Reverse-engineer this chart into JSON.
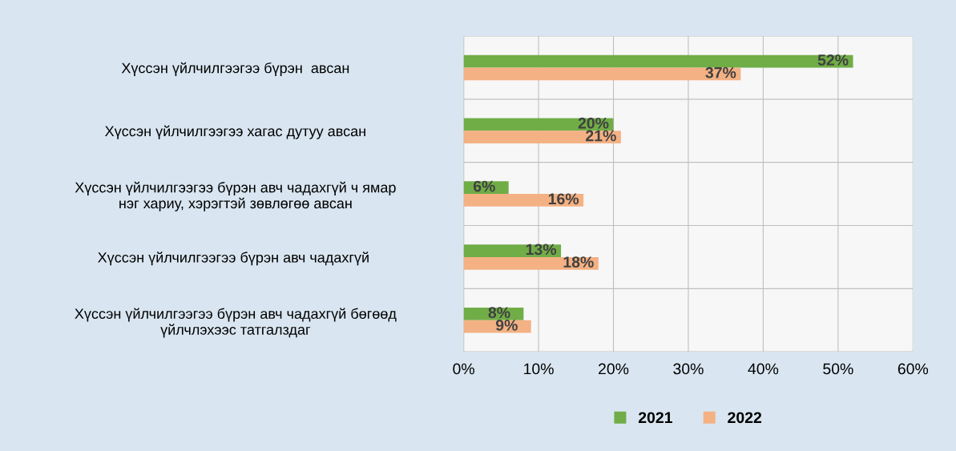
{
  "chart_data": {
    "type": "bar",
    "orientation": "horizontal",
    "categories": [
      "Хүссэн үйлчилгээгээ бүрэн  авсан",
      "Хүссэн үйлчилгээгээ хагас дутуу авсан",
      "Хүссэн үйлчилгээгээ бүрэн авч чадахгүй ч ямар\nнэг хариу, хэрэгтэй зөвлөгөө авсан",
      "Хүссэн үйлчилгээгээ бүрэн авч чадахгүй ",
      "Хүссэн үйлчилгээгээ бүрэн авч чадахгүй бөгөөд\nүйлчлэхээс татгалздаг"
    ],
    "series": [
      {
        "name": "2021",
        "color": "#70ad47",
        "values": [
          52,
          20,
          6,
          13,
          8
        ],
        "value_labels": [
          "52%",
          "20%",
          "6%",
          "13%",
          "8%"
        ]
      },
      {
        "name": "2022",
        "color": "#f4b183",
        "values": [
          37,
          21,
          16,
          18,
          9
        ],
        "value_labels": [
          "37%",
          "21%",
          "16%",
          "18%",
          "9%"
        ]
      }
    ],
    "xlim": [
      0,
      60
    ],
    "xticks": [
      {
        "value": 0,
        "label": "0%"
      },
      {
        "value": 10,
        "label": "10%"
      },
      {
        "value": 20,
        "label": "20%"
      },
      {
        "value": 30,
        "label": "30%"
      },
      {
        "value": 40,
        "label": "40%"
      },
      {
        "value": 50,
        "label": "50%"
      },
      {
        "value": 60,
        "label": "60%"
      }
    ],
    "grid": "x",
    "legend": "bottom"
  }
}
